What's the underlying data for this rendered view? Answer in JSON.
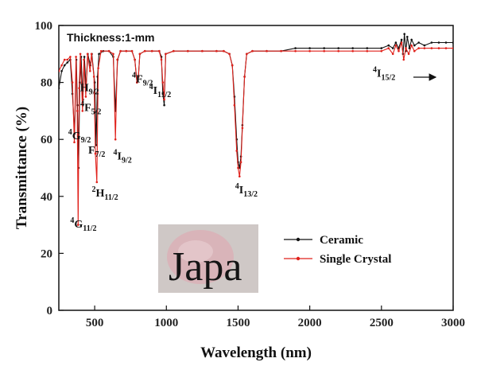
{
  "chart_data": {
    "type": "line",
    "title": "",
    "xlabel": "Wavelength (nm)",
    "ylabel": "Transmittance (%)",
    "xlim": [
      250,
      3000
    ],
    "ylim": [
      0,
      100
    ],
    "xticks": [
      500,
      1000,
      1500,
      2000,
      2500,
      3000
    ],
    "yticks": [
      0,
      20,
      40,
      60,
      80,
      100
    ],
    "thickness_label": "Thickness:1-mm",
    "inset_photo_text": "Japa",
    "legend_position": "center-right",
    "series": [
      {
        "name": "Ceramic",
        "color": "#111111",
        "points": [
          [
            250,
            78
          ],
          [
            270,
            84
          ],
          [
            290,
            86
          ],
          [
            310,
            87
          ],
          [
            330,
            88
          ],
          [
            345,
            76
          ],
          [
            360,
            62
          ],
          [
            372,
            88
          ],
          [
            380,
            72
          ],
          [
            388,
            50
          ],
          [
            396,
            80
          ],
          [
            405,
            89
          ],
          [
            418,
            74
          ],
          [
            428,
            89
          ],
          [
            440,
            78
          ],
          [
            452,
            90
          ],
          [
            470,
            86
          ],
          [
            480,
            90
          ],
          [
            500,
            80
          ],
          [
            510,
            58
          ],
          [
            520,
            82
          ],
          [
            530,
            90
          ],
          [
            560,
            91
          ],
          [
            600,
            91
          ],
          [
            630,
            89
          ],
          [
            645,
            70
          ],
          [
            660,
            88
          ],
          [
            680,
            91
          ],
          [
            720,
            91
          ],
          [
            760,
            91
          ],
          [
            780,
            88
          ],
          [
            795,
            80
          ],
          [
            805,
            82
          ],
          [
            815,
            90
          ],
          [
            850,
            91
          ],
          [
            900,
            91
          ],
          [
            950,
            91
          ],
          [
            965,
            89
          ],
          [
            975,
            76
          ],
          [
            985,
            72
          ],
          [
            995,
            90
          ],
          [
            1050,
            91
          ],
          [
            1150,
            91
          ],
          [
            1250,
            91
          ],
          [
            1350,
            91
          ],
          [
            1400,
            91
          ],
          [
            1440,
            90
          ],
          [
            1460,
            86
          ],
          [
            1475,
            75
          ],
          [
            1490,
            60
          ],
          [
            1500,
            52
          ],
          [
            1510,
            50
          ],
          [
            1520,
            54
          ],
          [
            1530,
            65
          ],
          [
            1545,
            82
          ],
          [
            1560,
            90
          ],
          [
            1600,
            91
          ],
          [
            1700,
            91
          ],
          [
            1800,
            91
          ],
          [
            1900,
            92
          ],
          [
            2000,
            92
          ],
          [
            2100,
            92
          ],
          [
            2200,
            92
          ],
          [
            2300,
            92
          ],
          [
            2400,
            92
          ],
          [
            2500,
            92
          ],
          [
            2550,
            93
          ],
          [
            2580,
            92
          ],
          [
            2600,
            94
          ],
          [
            2620,
            92
          ],
          [
            2640,
            95
          ],
          [
            2650,
            90
          ],
          [
            2660,
            97
          ],
          [
            2670,
            91
          ],
          [
            2680,
            96
          ],
          [
            2695,
            92
          ],
          [
            2710,
            95
          ],
          [
            2730,
            93
          ],
          [
            2760,
            94
          ],
          [
            2800,
            93
          ],
          [
            2850,
            94
          ],
          [
            2900,
            94
          ],
          [
            2950,
            94
          ],
          [
            3000,
            94
          ]
        ]
      },
      {
        "name": "Single Crystal",
        "color": "#e0211b",
        "points": [
          [
            250,
            84
          ],
          [
            270,
            86
          ],
          [
            290,
            88
          ],
          [
            310,
            88
          ],
          [
            330,
            89
          ],
          [
            345,
            80
          ],
          [
            358,
            59
          ],
          [
            370,
            89
          ],
          [
            378,
            70
          ],
          [
            385,
            30
          ],
          [
            392,
            78
          ],
          [
            400,
            90
          ],
          [
            415,
            70
          ],
          [
            425,
            88
          ],
          [
            438,
            75
          ],
          [
            450,
            90
          ],
          [
            468,
            84
          ],
          [
            478,
            90
          ],
          [
            495,
            82
          ],
          [
            505,
            55
          ],
          [
            515,
            45
          ],
          [
            525,
            85
          ],
          [
            545,
            91
          ],
          [
            600,
            91
          ],
          [
            630,
            90
          ],
          [
            645,
            60
          ],
          [
            658,
            88
          ],
          [
            680,
            91
          ],
          [
            720,
            91
          ],
          [
            760,
            91
          ],
          [
            780,
            88
          ],
          [
            795,
            80
          ],
          [
            805,
            82
          ],
          [
            815,
            90
          ],
          [
            850,
            91
          ],
          [
            900,
            91
          ],
          [
            950,
            91
          ],
          [
            965,
            88
          ],
          [
            975,
            80
          ],
          [
            985,
            74
          ],
          [
            995,
            90
          ],
          [
            1050,
            91
          ],
          [
            1150,
            91
          ],
          [
            1250,
            91
          ],
          [
            1350,
            91
          ],
          [
            1400,
            91
          ],
          [
            1440,
            90
          ],
          [
            1460,
            86
          ],
          [
            1475,
            72
          ],
          [
            1490,
            56
          ],
          [
            1500,
            50
          ],
          [
            1510,
            47
          ],
          [
            1520,
            52
          ],
          [
            1530,
            64
          ],
          [
            1545,
            82
          ],
          [
            1560,
            90
          ],
          [
            1600,
            91
          ],
          [
            1700,
            91
          ],
          [
            1800,
            91
          ],
          [
            1900,
            91
          ],
          [
            2000,
            91
          ],
          [
            2100,
            91
          ],
          [
            2200,
            91
          ],
          [
            2300,
            91
          ],
          [
            2400,
            91
          ],
          [
            2500,
            91
          ],
          [
            2550,
            92
          ],
          [
            2580,
            90
          ],
          [
            2600,
            93
          ],
          [
            2620,
            91
          ],
          [
            2640,
            94
          ],
          [
            2655,
            88
          ],
          [
            2670,
            92
          ],
          [
            2690,
            90
          ],
          [
            2710,
            93
          ],
          [
            2730,
            91
          ],
          [
            2760,
            92
          ],
          [
            2800,
            92
          ],
          [
            2850,
            92
          ],
          [
            2900,
            92
          ],
          [
            2950,
            92
          ],
          [
            3000,
            92
          ]
        ]
      }
    ],
    "annotations": [
      {
        "level": "4",
        "term": "G",
        "j": "11/2",
        "x": 330,
        "y": 29
      },
      {
        "level": "4",
        "term": "G",
        "j": "9/2",
        "x": 315,
        "y": 60
      },
      {
        "level": "",
        "term": "H",
        "j": "9/2",
        "x": 398,
        "y": 77
      },
      {
        "level": "4",
        "term": "F",
        "j": "5/2",
        "x": 400,
        "y": 70
      },
      {
        "level": "",
        "term": "F",
        "j": "7/2",
        "x": 455,
        "y": 55
      },
      {
        "level": "2",
        "term": "H",
        "j": "11/2",
        "x": 480,
        "y": 40
      },
      {
        "level": "4",
        "term": "I",
        "j": "9/2",
        "x": 630,
        "y": 53
      },
      {
        "level": "4",
        "term": "F",
        "j": "9/2",
        "x": 760,
        "y": 80
      },
      {
        "level": "4",
        "term": "I",
        "j": "11/2",
        "x": 880,
        "y": 76
      },
      {
        "level": "4",
        "term": "I",
        "j": "13/2",
        "x": 1480,
        "y": 41
      },
      {
        "level": "4",
        "term": "I",
        "j": "15/2",
        "x": 2440,
        "y": 82
      }
    ]
  }
}
